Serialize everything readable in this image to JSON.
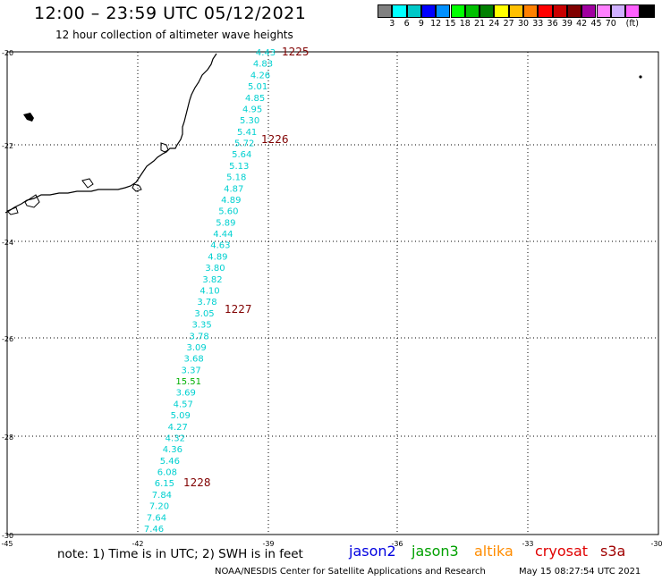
{
  "title": "12:00 – 23:59 UTC 05/12/2021",
  "subtitle": "12 hour collection of altimeter wave heights",
  "colorbar": {
    "colors": [
      "#808080",
      "#00ffff",
      "#00c8c8",
      "#0000ff",
      "#0090ff",
      "#00ff00",
      "#00c000",
      "#008000",
      "#ffff00",
      "#ffc000",
      "#ff8000",
      "#ff0000",
      "#c80000",
      "#800000",
      "#a000a0",
      "#ff80ff",
      "#d0b0ff",
      "#ff60ff",
      "#000000"
    ],
    "labels": [
      "3",
      "6",
      "9",
      "12",
      "15",
      "18",
      "21",
      "24",
      "27",
      "30",
      "33",
      "36",
      "39",
      "42",
      "45",
      "70"
    ],
    "unit": "(ft)"
  },
  "axes": {
    "lat_ticks": [
      "-20",
      "-22",
      "-24",
      "-26",
      "-28",
      "-30"
    ],
    "lon_ticks": [
      "-45",
      "-42",
      "-39",
      "-36",
      "-33",
      "-30"
    ]
  },
  "track": {
    "color": "#00d0d0",
    "highlight_color": "#00b000",
    "highlight_value": "15.51",
    "values": [
      "4.43",
      "4.83",
      "4.26",
      "5.01",
      "4.85",
      "4.95",
      "5.30",
      "5.41",
      "5.72",
      "5.64",
      "5.13",
      "5.18",
      "4.87",
      "4.89",
      "5.60",
      "5.89",
      "4.44",
      "4.63",
      "4.89",
      "3.80",
      "3.82",
      "4.10",
      "3.78",
      "3.05",
      "3.35",
      "3.78",
      "3.09",
      "3.68",
      "3.37",
      "15.51",
      "3.69",
      "4.57",
      "5.09",
      "4.27",
      "4.32",
      "4.36",
      "5.46",
      "6.08",
      "6.15",
      "7.84",
      "7.20",
      "7.64",
      "7.46"
    ]
  },
  "time_labels": {
    "color": "#800000",
    "items": [
      "1225",
      "1226",
      "1227",
      "1228"
    ]
  },
  "note": "note:  1) Time is in UTC;  2) SWH is in feet",
  "missions": [
    {
      "name": "jason2",
      "color": "#0000e0"
    },
    {
      "name": "jason3",
      "color": "#00a000"
    },
    {
      "name": "altika",
      "color": "#ff8c00"
    },
    {
      "name": "cryosat",
      "color": "#e00000"
    },
    {
      "name": "s3a",
      "color": "#a00000"
    }
  ],
  "credit": "NOAA/NESDIS Center for Satellite Applications and Research",
  "timestamp": "May 15 08:27:54 UTC 2021"
}
